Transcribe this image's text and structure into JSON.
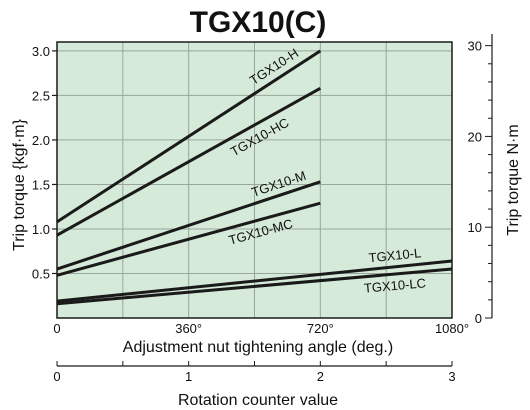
{
  "chart_data": {
    "type": "line",
    "title": "TGX10(C)",
    "xlabel": "Adjustment nut tightening angle (deg.)",
    "ylabel_left": "Trip torque  {kgf·m}",
    "ylabel_right": "Trip torque  N·m",
    "xlabel_secondary": "Rotation counter value",
    "x_range": [
      0,
      1080
    ],
    "y_range": [
      0,
      3.1
    ],
    "y_right_range": [
      0,
      30.4
    ],
    "grid": true,
    "background_color": "#d5ead8",
    "line_color": "#1a1a1a",
    "x_ticks": [
      {
        "value": 0,
        "label": "0"
      },
      {
        "value": 360,
        "label": "360°"
      },
      {
        "value": 720,
        "label": "720°"
      },
      {
        "value": 1080,
        "label": "1080°"
      }
    ],
    "y_ticks": [
      "0.5",
      "1.0",
      "1.5",
      "2.0",
      "2.5",
      "3.0"
    ],
    "y_tick_values": [
      0.5,
      1.0,
      1.5,
      2.0,
      2.5,
      3.0
    ],
    "y_right_ticks": [
      "0",
      "10",
      "20",
      "30"
    ],
    "y_right_tick_values": [
      0,
      10,
      20,
      30
    ],
    "secondary_x_ticks": [
      "0",
      "1",
      "2",
      "3"
    ],
    "secondary_x_tick_values": [
      0,
      1,
      2,
      3
    ],
    "series": [
      {
        "name": "TGX10-H",
        "x": [
          0,
          720
        ],
        "y": [
          1.08,
          3.0
        ]
      },
      {
        "name": "TGX10-HC",
        "x": [
          0,
          720
        ],
        "y": [
          0.93,
          2.58
        ]
      },
      {
        "name": "TGX10-M",
        "x": [
          0,
          720
        ],
        "y": [
          0.55,
          1.53
        ]
      },
      {
        "name": "TGX10-MC",
        "x": [
          0,
          720
        ],
        "y": [
          0.48,
          1.29
        ]
      },
      {
        "name": "TGX10-L",
        "x": [
          0,
          1080
        ],
        "y": [
          0.19,
          0.64
        ]
      },
      {
        "name": "TGX10-LC",
        "x": [
          0,
          1080
        ],
        "y": [
          0.16,
          0.55
        ]
      }
    ]
  }
}
